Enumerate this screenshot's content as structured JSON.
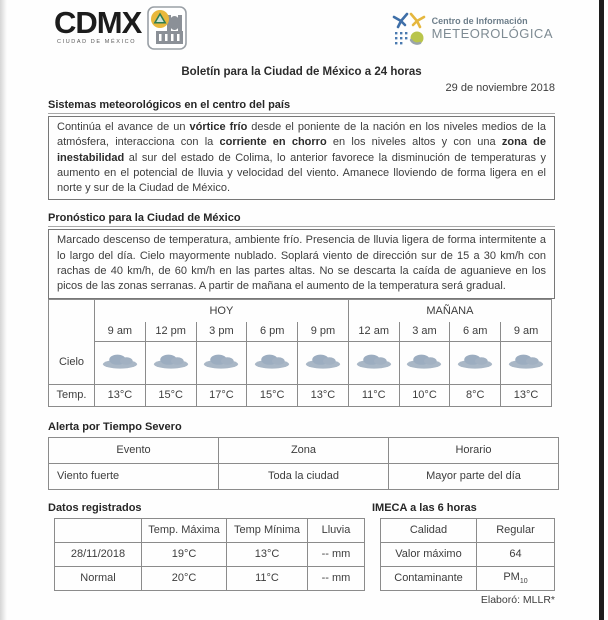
{
  "header": {
    "cdmx_logo": {
      "cd": "CD",
      "mx": "MX",
      "subtext": "CIUDAD DE MÉXICO",
      "badge_icon": "proteccion-civil-icon"
    },
    "met_logo": {
      "line1": "Centro de Información",
      "line2": "METEOROLÓGICA",
      "icon": "weather-quadrant-icon"
    },
    "title": "Boletín para la Ciudad de México a 24 horas",
    "date": "29 de noviembre 2018"
  },
  "sistemas": {
    "heading": "Sistemas meteorológicos en el centro del país",
    "segments": [
      {
        "t": "Continúa el avance de un "
      },
      {
        "t": "vórtice frío",
        "b": true
      },
      {
        "t": " desde el poniente de la nación en los niveles medios de la atmósfera, interacciona con la "
      },
      {
        "t": "corriente en chorro",
        "b": true
      },
      {
        "t": " en los niveles altos y con una "
      },
      {
        "t": "zona de inestabilidad",
        "b": true
      },
      {
        "t": " al sur del estado de Colima, lo anterior favorece la disminución de temperaturas y aumento en el potencial de lluvia y velocidad del viento. Amanece lloviendo de forma ligera en el norte y sur de la Ciudad de México."
      }
    ]
  },
  "pronostico": {
    "heading": "Pronóstico para la Ciudad de México",
    "body": "Marcado descenso de temperatura, ambiente frío. Presencia de lluvia ligera de forma intermitente a lo largo del día. Cielo mayormente nublado. Soplará viento de dirección sur de 15 a 30 km/h con rachas de 40 km/h, de 60 km/h en las partes altas. No se descarta la caída de aguanieve en los picos de las zonas serranas. A partir de mañana el aumento de la temperatura será gradual."
  },
  "forecast": {
    "group_today": "HOY",
    "group_tomorrow": "MAÑANA",
    "times": [
      "9 am",
      "12 pm",
      "3 pm",
      "6 pm",
      "9 pm",
      "12 am",
      "3 am",
      "6 am",
      "9 am"
    ],
    "cielo_label": "Cielo",
    "cielo_icon": "cloudy-icon",
    "temp_label": "Temp.",
    "temps": [
      "13°C",
      "15°C",
      "17°C",
      "15°C",
      "13°C",
      "11°C",
      "10°C",
      "8°C",
      "13°C"
    ]
  },
  "alerta": {
    "heading": "Alerta por Tiempo Severo",
    "columns": [
      "Evento",
      "Zona",
      "Horario"
    ],
    "row": [
      "Viento fuerte",
      "Toda la ciudad",
      "Mayor parte del día"
    ]
  },
  "datos": {
    "heading": "Datos registrados",
    "columns": [
      "",
      "Temp. Máxima",
      "Temp Mínima",
      "Lluvia"
    ],
    "rows": [
      [
        "28/11/2018",
        "19°C",
        "13°C",
        "-- mm"
      ],
      [
        "Normal",
        "20°C",
        "11°C",
        "-- mm"
      ]
    ]
  },
  "imeca": {
    "heading": "IMECA a las 6 horas",
    "rows": [
      {
        "label": "Calidad",
        "value": "Regular"
      },
      {
        "label": "Valor máximo",
        "value": "64"
      },
      {
        "label": "Contaminante",
        "value": "PM",
        "value_sub": "10"
      }
    ]
  },
  "footer": {
    "elaboro": "Elaboró: MLLR*"
  }
}
